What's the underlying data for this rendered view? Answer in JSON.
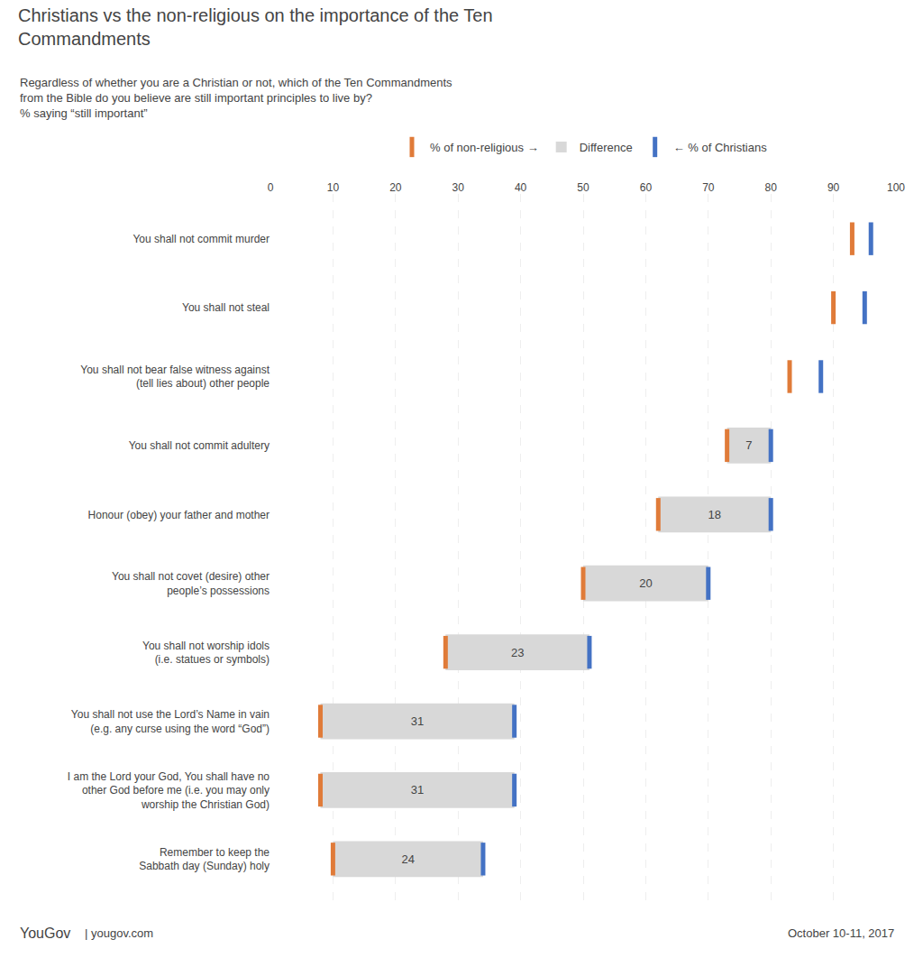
{
  "chart_data": {
    "type": "dumbbell",
    "orientation": "horizontal",
    "title": "Christians vs the non-religious on the importance of the Ten\nCommandments",
    "subtitle": "Regardless of whether you are a Christian or not, which of the Ten Commandments\nfrom the Bible do you believe are still important principles to live by?\n% saying “still important”",
    "categories": [
      "You shall not commit murder",
      "You shall not steal",
      "You shall not bear false witness against\n(tell lies about) other people",
      "You shall not commit adultery",
      "Honour (obey) your father and mother",
      "You shall not covet (desire) other\npeople’s possessions",
      "You shall not worship idols\n(i.e. statues or symbols)",
      "You shall not use the Lord’s Name in vain\n(e.g. any curse using the word “God”)",
      "I am the Lord your God, You shall have no\nother God before me (i.e. you may only\nworship the Christian God)",
      "Remember to keep the\nSabbath day (Sunday) holy"
    ],
    "series": [
      {
        "name": "% of non-religious →",
        "type": "scatter",
        "marker": "line",
        "color": "#e07b39",
        "values": [
          93,
          90,
          83,
          73,
          62,
          50,
          28,
          8,
          8,
          10
        ]
      },
      {
        "name": "← % of Christians",
        "type": "scatter",
        "marker": "line",
        "color": "#4472c4",
        "values": [
          96,
          95,
          88,
          80,
          80,
          70,
          51,
          39,
          39,
          34
        ]
      },
      {
        "name": "Difference",
        "type": "bar",
        "color": "#d8d8d8",
        "data_labels": true,
        "values": [
          null,
          null,
          null,
          7,
          18,
          20,
          23,
          31,
          31,
          24
        ]
      }
    ],
    "xlim": [
      0,
      100
    ],
    "xticks": [
      0,
      10,
      20,
      30,
      40,
      50,
      60,
      70,
      80,
      90,
      100
    ],
    "grid": true,
    "legend": "top",
    "annotations": [
      "YouGov",
      "| yougov.com",
      "October 10-11, 2017"
    ]
  }
}
